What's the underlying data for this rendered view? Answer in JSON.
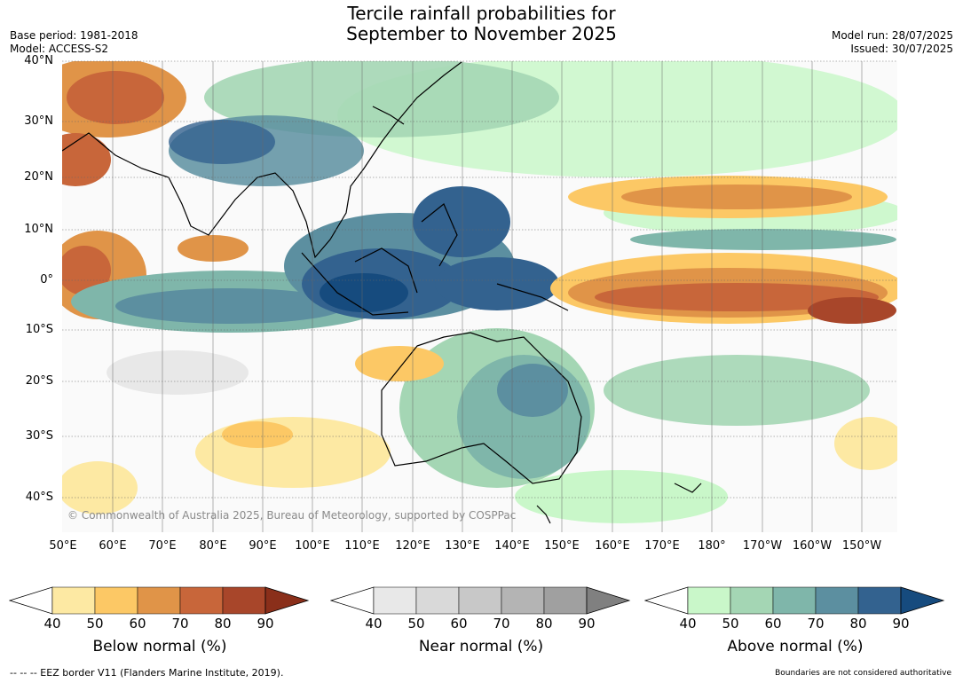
{
  "title_line1": "Tercile rainfall probabilities for",
  "title_line2": "September to November 2025",
  "base_period": "Base period: 1981-2018",
  "model": "Model: ACCESS-S2",
  "model_run": "Model run: 28/07/2025",
  "issued": "Issued: 30/07/2025",
  "copyright": "© Commonwealth of Australia 2025, Bureau of Meteorology, supported by COSPPac",
  "lat_labels": [
    "40°N",
    "30°N",
    "20°N",
    "10°N",
    "0°",
    "10°S",
    "20°S",
    "30°S",
    "40°S"
  ],
  "lon_labels": [
    "50°E",
    "60°E",
    "70°E",
    "80°E",
    "90°E",
    "100°E",
    "110°E",
    "120°E",
    "130°E",
    "140°E",
    "150°E",
    "160°E",
    "170°E",
    "180°",
    "170°W",
    "160°W",
    "150°W"
  ],
  "legend": {
    "below": {
      "title": "Below normal (%)",
      "ticks": [
        "40",
        "50",
        "60",
        "70",
        "80",
        "90"
      ],
      "colors": [
        "#ffffff",
        "#fde9a3",
        "#fcc865",
        "#e09448",
        "#c8663a",
        "#a8462a",
        "#8a2f1a"
      ]
    },
    "near": {
      "title": "Near normal (%)",
      "ticks": [
        "40",
        "50",
        "60",
        "70",
        "80",
        "90"
      ],
      "colors": [
        "#ffffff",
        "#e8e8e8",
        "#d9d9d9",
        "#c8c8c8",
        "#b4b4b4",
        "#a0a0a0",
        "#808080"
      ]
    },
    "above": {
      "title": "Above normal (%)",
      "ticks": [
        "40",
        "50",
        "60",
        "70",
        "80",
        "90"
      ],
      "colors": [
        "#ffffff",
        "#c9f7c9",
        "#a4d6b4",
        "#7fb6aa",
        "#5c8fa0",
        "#33628f",
        "#164b7e"
      ]
    }
  },
  "eez_note": "--  --  -- EEZ border V11 (Flanders Marine Institute, 2019).",
  "boundaries_note": "Boundaries are not considered authoritative"
}
